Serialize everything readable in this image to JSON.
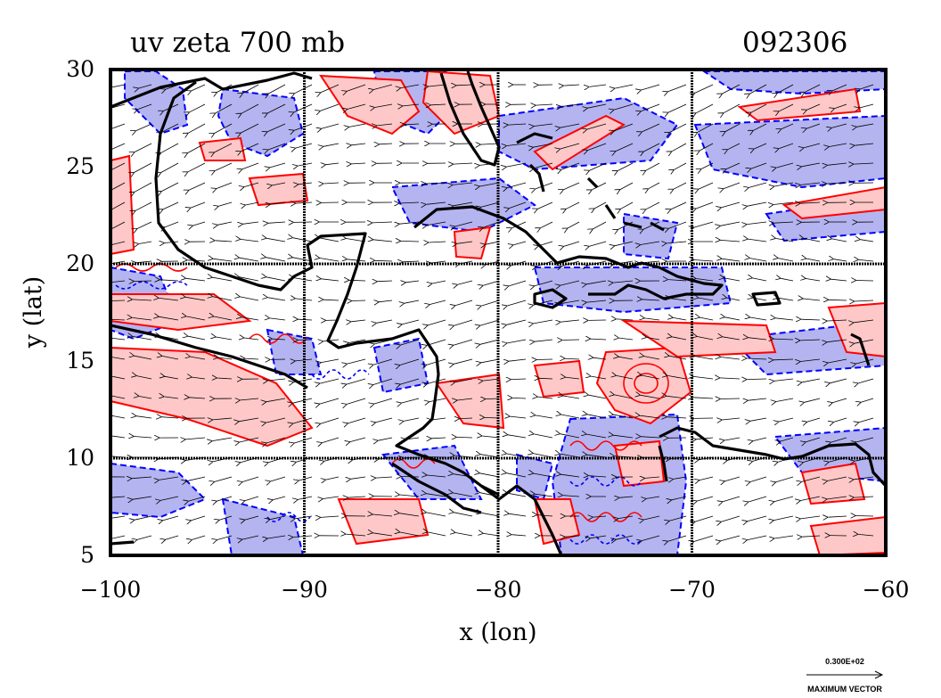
{
  "title": "uv zeta 700 mb",
  "date_label": "092306",
  "x_axis": {
    "label": "x (lon)",
    "range": [
      -100,
      -60
    ],
    "ticks": [
      -100,
      -90,
      -80,
      -70,
      -60
    ],
    "tick_labels": [
      "−100",
      "−90",
      "−80",
      "−70",
      "−60"
    ]
  },
  "y_axis": {
    "label": "y (lat)",
    "range": [
      5,
      30
    ],
    "ticks": [
      5,
      10,
      15,
      20,
      25,
      30
    ],
    "tick_labels": [
      "5",
      "10",
      "15",
      "20",
      "25",
      "30"
    ]
  },
  "gridlines": {
    "lon": [
      -90,
      -80,
      -70
    ],
    "lat": [
      10,
      20
    ]
  },
  "reference_vector": {
    "value_label": "0.300E+02",
    "caption": "MAXIMUM VECTOR"
  },
  "colors": {
    "positive_contour": "#ff0000",
    "positive_fill": "#ffc8c8",
    "negative_contour": "#0000ff",
    "negative_fill": "#b4b4f0",
    "coastline": "#000000"
  }
}
